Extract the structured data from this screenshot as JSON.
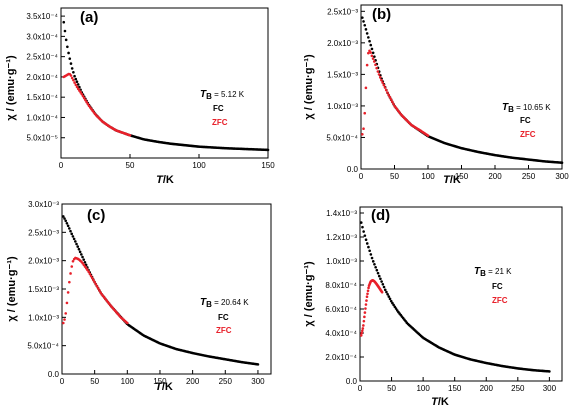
{
  "colors": {
    "fc": "#000000",
    "zfc": "#e8202a"
  },
  "chart_data": [
    {
      "type": "scatter",
      "panel_label": "(a)",
      "xlabel": "T/K",
      "ylabel": "χ / (emu·g⁻¹)",
      "xlim": [
        0,
        150
      ],
      "ylim": [
        0,
        0.00037
      ],
      "x_ticks": [
        0,
        50,
        100,
        150
      ],
      "x_tick_labels": [
        "0",
        "50",
        "100",
        "150"
      ],
      "y_ticks": [
        5e-05,
        0.0001,
        0.00015,
        0.0002,
        0.00025,
        0.0003,
        0.00035
      ],
      "y_tick_labels": [
        "5.0x10⁻⁵",
        "1.0x10⁻⁴",
        "1.5x10⁻⁴",
        "2.0x10⁻⁴",
        "2.5x10⁻⁴",
        "3.0x10⁻⁴",
        "3.5x10⁻⁴"
      ],
      "annotation": {
        "symbol": "T",
        "subscript": "B",
        "value": " = 5.12 K"
      },
      "legend": [
        "FC",
        "ZFC"
      ],
      "series": [
        {
          "name": "FC",
          "x": [
            2,
            3,
            4,
            6,
            8,
            10,
            12,
            15,
            20,
            25,
            30,
            35,
            40,
            50,
            60,
            70,
            80,
            100,
            120,
            150
          ],
          "values": [
            0.000335,
            0.00031,
            0.000285,
            0.00025,
            0.000222,
            0.0002,
            0.000185,
            0.000162,
            0.000132,
            0.000108,
            9e-05,
            7.8e-05,
            6.8e-05,
            5.6e-05,
            4.6e-05,
            4e-05,
            3.5e-05,
            2.8e-05,
            2.4e-05,
            2e-05
          ]
        },
        {
          "name": "ZFC",
          "x": [
            2,
            3,
            4,
            5,
            6,
            7,
            8,
            9,
            10,
            12,
            15,
            20,
            25,
            30,
            35,
            40,
            45,
            50
          ],
          "values": [
            0.0002,
            0.000202,
            0.000204,
            0.000206,
            0.000208,
            0.000205,
            0.000198,
            0.000192,
            0.000185,
            0.000173,
            0.000158,
            0.00013,
            0.000107,
            9e-05,
            7.8e-05,
            6.8e-05,
            6.2e-05,
            5.6e-05
          ]
        }
      ]
    },
    {
      "type": "scatter",
      "panel_label": "(b)",
      "xlabel": "T/K",
      "ylabel": "χ / (emu·g⁻¹)",
      "xlim": [
        0,
        300
      ],
      "ylim": [
        0,
        0.0026
      ],
      "x_ticks": [
        0,
        50,
        100,
        150,
        200,
        250,
        300
      ],
      "x_tick_labels": [
        "0",
        "50",
        "100",
        "150",
        "200",
        "250",
        "300"
      ],
      "y_ticks": [
        0,
        0.0005,
        0.001,
        0.0015,
        0.002,
        0.0025
      ],
      "y_tick_labels": [
        "0.0",
        "5.0x10⁻⁴",
        "1.0x10⁻³",
        "1.5x10⁻³",
        "2.0x10⁻³",
        "2.5x10⁻³"
      ],
      "annotation": {
        "symbol": "T",
        "subscript": "B",
        "value": " = 10.65 K"
      },
      "legend": [
        "FC",
        "ZFC"
      ],
      "series": [
        {
          "name": "FC",
          "x": [
            2,
            5,
            10,
            15,
            20,
            30,
            40,
            50,
            60,
            75,
            100,
            125,
            150,
            175,
            200,
            225,
            250,
            275,
            300
          ],
          "values": [
            0.0024,
            0.0023,
            0.00212,
            0.00195,
            0.00178,
            0.00145,
            0.0012,
            0.001,
            0.00086,
            0.0007,
            0.00052,
            0.00041,
            0.00033,
            0.00027,
            0.00022,
            0.00018,
            0.00015,
            0.00012,
            0.0001
          ]
        },
        {
          "name": "ZFC",
          "x": [
            2,
            4,
            6,
            8,
            10,
            12,
            14,
            16,
            20,
            25,
            30,
            40,
            50,
            60,
            75,
            90,
            100
          ],
          "values": [
            0.00055,
            0.00065,
            0.00095,
            0.00145,
            0.0018,
            0.00188,
            0.00186,
            0.0018,
            0.0017,
            0.00155,
            0.00142,
            0.0012,
            0.001,
            0.00086,
            0.0007,
            0.0006,
            0.00053
          ]
        }
      ]
    },
    {
      "type": "scatter",
      "panel_label": "(c)",
      "xlabel": "T/K",
      "ylabel": "χ / (emu·g⁻¹)",
      "xlim": [
        0,
        320
      ],
      "ylim": [
        0,
        0.003
      ],
      "x_ticks": [
        0,
        50,
        100,
        150,
        200,
        250,
        300
      ],
      "x_tick_labels": [
        "0",
        "50",
        "100",
        "150",
        "200",
        "250",
        "300"
      ],
      "y_ticks": [
        0,
        0.0005,
        0.001,
        0.0015,
        0.002,
        0.0025,
        0.003
      ],
      "y_tick_labels": [
        "0.0",
        "5.0x10⁻⁴",
        "1.0x10⁻³",
        "1.5x10⁻³",
        "2.0x10⁻³",
        "2.5x10⁻³",
        "3.0x10⁻³"
      ],
      "annotation": {
        "symbol": "T",
        "subscript": "B",
        "value": " = 20.64 K"
      },
      "legend": [
        "FC",
        "ZFC"
      ],
      "series": [
        {
          "name": "FC",
          "x": [
            2,
            5,
            10,
            15,
            20,
            30,
            40,
            50,
            60,
            75,
            100,
            125,
            150,
            175,
            200,
            225,
            250,
            275,
            300
          ],
          "values": [
            0.00278,
            0.00272,
            0.0026,
            0.00247,
            0.00235,
            0.0021,
            0.00185,
            0.00162,
            0.00142,
            0.0012,
            0.00088,
            0.00068,
            0.00054,
            0.00044,
            0.00037,
            0.00031,
            0.00026,
            0.00021,
            0.00017
          ]
        },
        {
          "name": "ZFC",
          "x": [
            2,
            5,
            8,
            11,
            14,
            17,
            20,
            23,
            26,
            30,
            40,
            50,
            60,
            75,
            90,
            100
          ],
          "values": [
            0.0009,
            0.001,
            0.0013,
            0.0016,
            0.00185,
            0.002,
            0.00205,
            0.00204,
            0.00202,
            0.00198,
            0.00182,
            0.00162,
            0.00142,
            0.0012,
            0.001,
            0.0009
          ]
        }
      ]
    },
    {
      "type": "scatter",
      "panel_label": "(d)",
      "xlabel": "T/K",
      "ylabel": "χ / (emu·g⁻¹)",
      "xlim": [
        0,
        320
      ],
      "ylim": [
        0,
        0.00145
      ],
      "x_ticks": [
        0,
        50,
        100,
        150,
        200,
        250,
        300
      ],
      "x_tick_labels": [
        "0",
        "50",
        "100",
        "150",
        "200",
        "250",
        "300"
      ],
      "y_ticks": [
        0,
        0.0002,
        0.0004,
        0.0006,
        0.0008,
        0.001,
        0.0012,
        0.0014
      ],
      "y_tick_labels": [
        "0.0",
        "2.0x10⁻⁴",
        "4.0x10⁻⁴",
        "6.0x10⁻⁴",
        "8.0x10⁻⁴",
        "1.0x10⁻³",
        "1.2x10⁻³",
        "1.4x10⁻³"
      ],
      "annotation": {
        "symbol": "T",
        "subscript": "B",
        "value": " = 21 K"
      },
      "legend": [
        "FC",
        "ZFC"
      ],
      "series": [
        {
          "name": "FC",
          "x": [
            2,
            5,
            10,
            15,
            20,
            30,
            40,
            50,
            60,
            75,
            100,
            125,
            150,
            175,
            200,
            225,
            250,
            275,
            300
          ],
          "values": [
            0.00132,
            0.00126,
            0.00117,
            0.00109,
            0.00101,
            0.00088,
            0.00076,
            0.00066,
            0.00058,
            0.00048,
            0.00036,
            0.00028,
            0.00022,
            0.00018,
            0.00015,
            0.000125,
            0.000105,
            9e-05,
            8e-05
          ]
        },
        {
          "name": "ZFC",
          "x": [
            2,
            5,
            8,
            11,
            14,
            17,
            20,
            23,
            26,
            30,
            35
          ],
          "values": [
            0.00038,
            0.00045,
            0.00058,
            0.0007,
            0.00079,
            0.00083,
            0.00084,
            0.00083,
            0.00081,
            0.00078,
            0.00074
          ]
        }
      ]
    }
  ]
}
